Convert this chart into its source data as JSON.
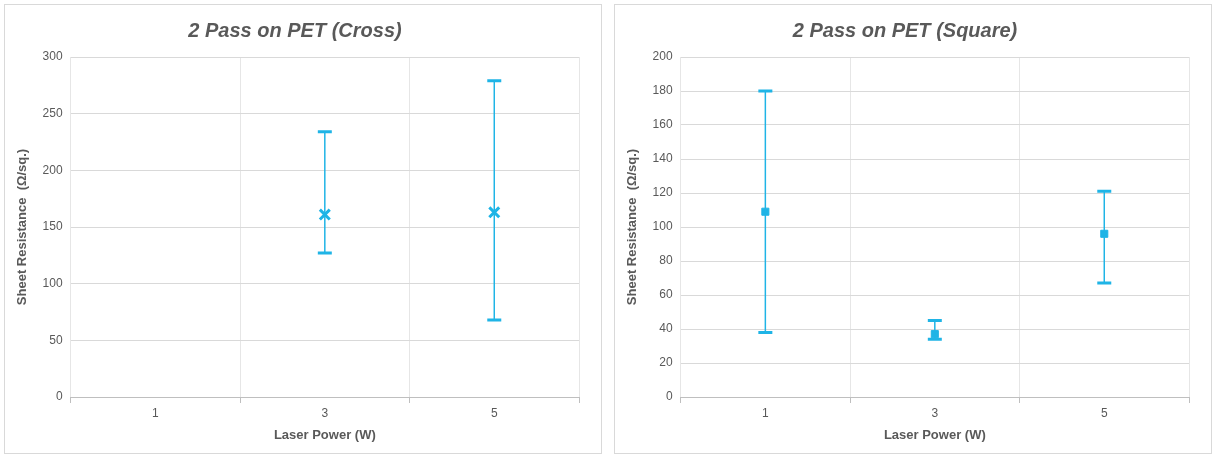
{
  "chart_data": [
    {
      "type": "scatter",
      "title": "2 Pass on PET (Cross)",
      "xlabel": "Laser Power (W)",
      "ylabel": "Sheet Resistance  (Ω/sq.)",
      "categories": [
        "1",
        "3",
        "5"
      ],
      "series": [
        {
          "color": "#1fb4e6",
          "values": [
            null,
            161,
            163
          ],
          "errors": [
            null,
            [
              127,
              234
            ],
            [
              68,
              279
            ]
          ]
        }
      ],
      "ylim": [
        0,
        300
      ],
      "yticks": [
        0,
        50,
        100,
        150,
        200,
        250,
        300
      ],
      "grid": true,
      "legend": false,
      "marker": "cross"
    },
    {
      "type": "scatter",
      "title": "2 Pass on PET (Square)",
      "xlabel": "Laser Power (W)",
      "ylabel": "Sheet Resistance  (Ω/sq.)",
      "categories": [
        "1",
        "3",
        "5"
      ],
      "series": [
        {
          "color": "#1fb4e6",
          "values": [
            109,
            37,
            96
          ],
          "errors": [
            [
              38,
              180
            ],
            [
              34,
              45
            ],
            [
              67,
              121
            ]
          ]
        }
      ],
      "ylim": [
        0,
        200
      ],
      "yticks": [
        0,
        20,
        40,
        60,
        80,
        100,
        120,
        140,
        160,
        180,
        200
      ],
      "grid": true,
      "legend": false,
      "marker": "square"
    }
  ]
}
